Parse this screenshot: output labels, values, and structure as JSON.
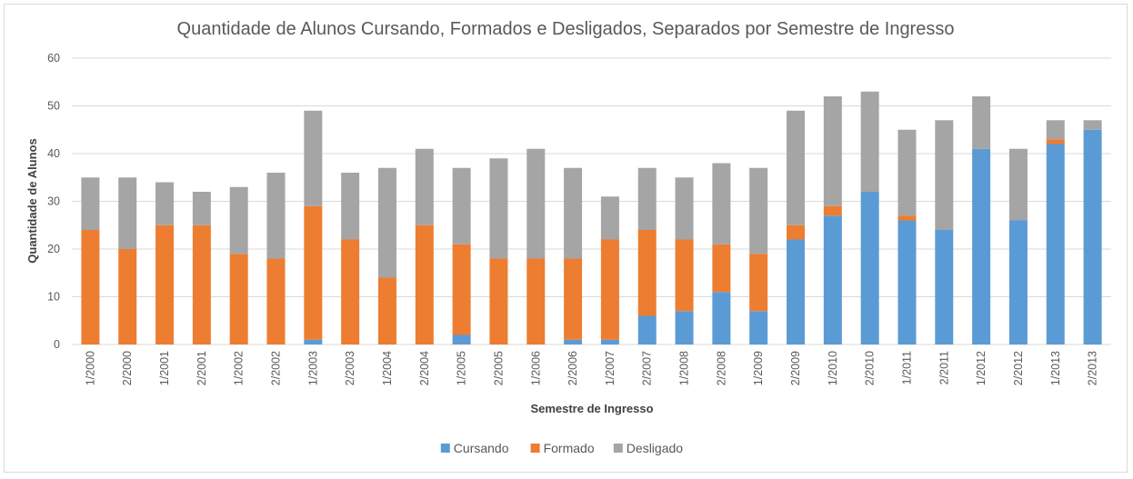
{
  "chart_data": {
    "type": "bar",
    "stacked": true,
    "title": "Quantidade de Alunos Cursando, Formados e Desligados, Separados por Semestre de Ingresso",
    "xlabel": "Semestre de Ingresso",
    "ylabel": "Quantidade de Alunos",
    "ylim": [
      0,
      60
    ],
    "yticks": [
      0,
      10,
      20,
      30,
      40,
      50,
      60
    ],
    "grid": true,
    "legend_position": "bottom",
    "categories": [
      "1/2000",
      "2/2000",
      "1/2001",
      "2/2001",
      "1/2002",
      "2/2002",
      "1/2003",
      "2/2003",
      "1/2004",
      "2/2004",
      "1/2005",
      "2/2005",
      "1/2006",
      "2/2006",
      "1/2007",
      "2/2007",
      "1/2008",
      "2/2008",
      "1/2009",
      "2/2009",
      "1/2010",
      "2/2010",
      "1/2011",
      "2/2011",
      "1/2012",
      "2/2012",
      "1/2013",
      "2/2013"
    ],
    "series": [
      {
        "name": "Cursando",
        "color": "#5b9bd5",
        "values": [
          0,
          0,
          0,
          0,
          0,
          0,
          1,
          0,
          0,
          0,
          2,
          0,
          0,
          1,
          1,
          6,
          7,
          11,
          7,
          22,
          27,
          32,
          26,
          24,
          41,
          26,
          42,
          45
        ]
      },
      {
        "name": "Formado",
        "color": "#ed7d31",
        "values": [
          24,
          20,
          25,
          25,
          19,
          18,
          28,
          22,
          14,
          25,
          19,
          18,
          18,
          17,
          21,
          18,
          15,
          10,
          12,
          3,
          2,
          0,
          1,
          0,
          0,
          0,
          1,
          0
        ]
      },
      {
        "name": "Desligado",
        "color": "#a5a5a5",
        "values": [
          11,
          15,
          9,
          7,
          14,
          18,
          20,
          14,
          23,
          16,
          16,
          21,
          23,
          19,
          9,
          13,
          13,
          17,
          18,
          24,
          23,
          21,
          18,
          23,
          11,
          15,
          4,
          2
        ]
      }
    ]
  }
}
